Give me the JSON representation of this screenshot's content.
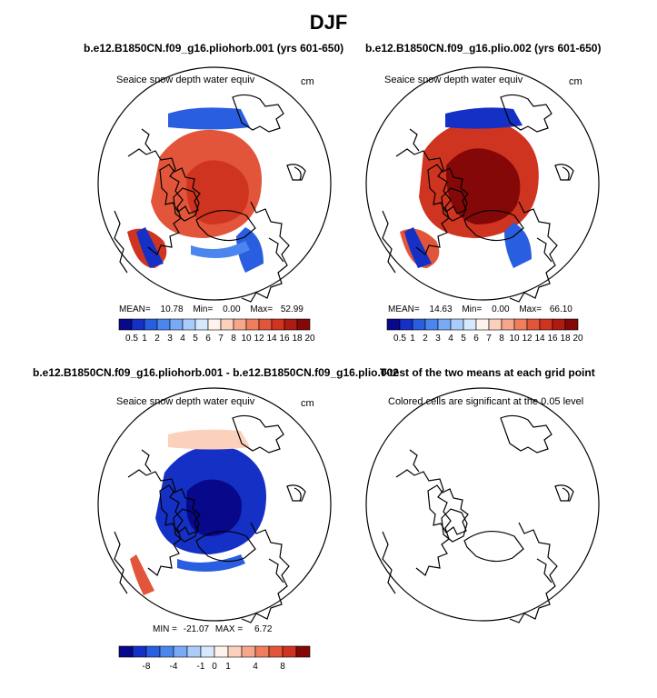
{
  "page_title": "DJF",
  "chart_data": [
    {
      "type": "heatmap",
      "projection": "north-polar-stereographic",
      "title": "b.e12.B1850CN.f09_g16.pliohorb.001 (yrs 601-650)",
      "variable": "Seaice snow depth water equiv",
      "units": "cm",
      "stats": {
        "mean_label": "MEAN=",
        "mean": "10.78",
        "min_label": "Min=",
        "min": "0.00",
        "max_label": "Max=",
        "max": "52.99"
      },
      "colorbar": {
        "levels": [
          "0.5",
          "1",
          "2",
          "3",
          "4",
          "5",
          "6",
          "7",
          "8",
          "10",
          "12",
          "14",
          "16",
          "18",
          "20"
        ]
      }
    },
    {
      "type": "heatmap",
      "projection": "north-polar-stereographic",
      "title": "b.e12.B1850CN.f09_g16.plio.002 (yrs 601-650)",
      "variable": "Seaice snow depth water equiv",
      "units": "cm",
      "stats": {
        "mean_label": "MEAN=",
        "mean": "14.63",
        "min_label": "Min=",
        "min": "0.00",
        "max_label": "Max=",
        "max": "66.10"
      },
      "colorbar": {
        "levels": [
          "0.5",
          "1",
          "2",
          "3",
          "4",
          "5",
          "6",
          "7",
          "8",
          "10",
          "12",
          "14",
          "16",
          "18",
          "20"
        ]
      }
    },
    {
      "type": "heatmap",
      "projection": "north-polar-stereographic",
      "title": "b.e12.B1850CN.f09_g16.pliohorb.001 - b.e12.B1850CN.f09_g16.plio.002",
      "variable": "Seaice snow depth water equiv",
      "units": "cm",
      "stats": {
        "min_label": "MIN =",
        "min": "-21.07",
        "max_label": "MAX =",
        "max": "6.72"
      },
      "colorbar": {
        "labels": [
          "-8",
          "-4",
          "-1",
          "0",
          "1",
          "4",
          "8"
        ]
      }
    },
    {
      "type": "heatmap",
      "projection": "north-polar-stereographic",
      "title": "T-test of the two means at each grid point",
      "subtitle": "Colored cells are significant at the 0.05 level"
    }
  ],
  "colors": {
    "seq": [
      "#08088a",
      "#1530c4",
      "#2a5ee0",
      "#4a86ee",
      "#78aaf5",
      "#a9ccfa",
      "#d6e8fd",
      "#fdf2ec",
      "#fbd0bc",
      "#f6a78b",
      "#f07e5e",
      "#e3553a",
      "#cf3421",
      "#ae1b12",
      "#840808"
    ],
    "diff": [
      "#08088a",
      "#1530c4",
      "#2a5ee0",
      "#4a86ee",
      "#78aaf5",
      "#a9ccfa",
      "#d6e8fd",
      "#fdf2ec",
      "#fbd0bc",
      "#f6a78b",
      "#f07e5e",
      "#e3553a",
      "#cf3421",
      "#840808"
    ]
  }
}
